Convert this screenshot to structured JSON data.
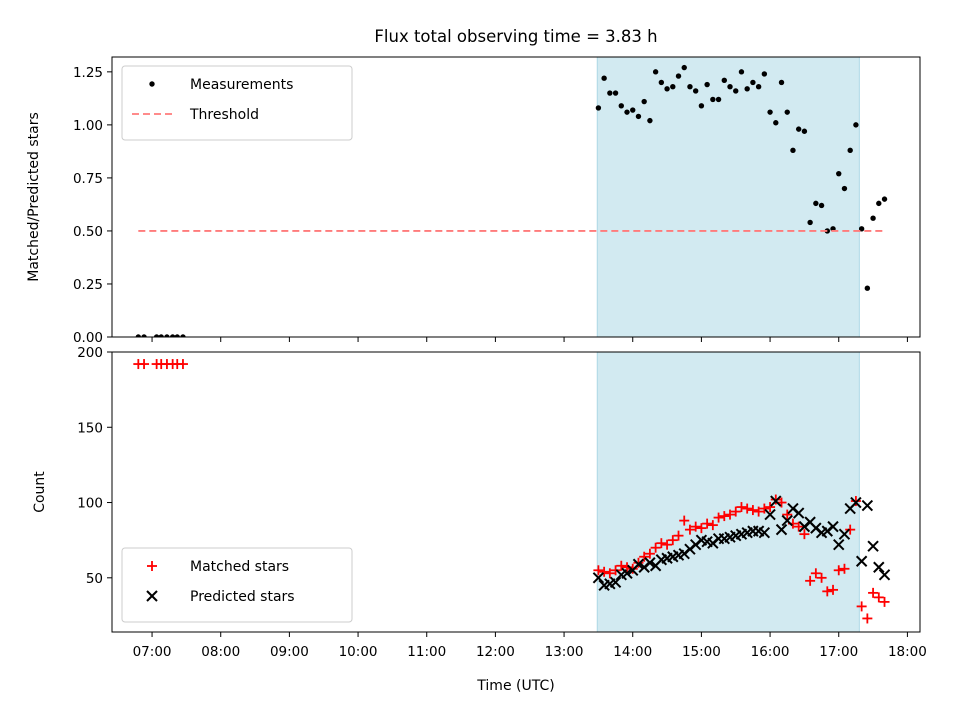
{
  "chart_data": {
    "title": "Flux total observing time = 3.83 h",
    "xlabel": "Time (UTC)",
    "x_ticks": [
      "07:00",
      "08:00",
      "09:00",
      "10:00",
      "11:00",
      "12:00",
      "13:00",
      "14:00",
      "15:00",
      "16:00",
      "17:00",
      "18:00"
    ],
    "shaded_span": [
      "13:29",
      "17:18"
    ],
    "span_color": "#add8e6",
    "panels": [
      {
        "type": "scatter",
        "ylabel": "Matched/Predicted stars",
        "ylim": [
          0,
          1.32
        ],
        "y_ticks": [
          "0.00",
          "0.25",
          "0.50",
          "0.75",
          "1.00",
          "1.25"
        ],
        "legend_position": "upper-left",
        "series": [
          {
            "name": "Measurements",
            "marker": "dot",
            "color": "#000000",
            "points": [
              [
                "06:48",
                0
              ],
              [
                "06:53",
                0
              ],
              [
                "07:04",
                0
              ],
              [
                "07:08",
                0
              ],
              [
                "07:13",
                0
              ],
              [
                "07:18",
                0
              ],
              [
                "07:22",
                0
              ],
              [
                "07:27",
                0
              ],
              [
                "13:30",
                1.08
              ],
              [
                "13:35",
                1.22
              ],
              [
                "13:40",
                1.15
              ],
              [
                "13:45",
                1.15
              ],
              [
                "13:50",
                1.09
              ],
              [
                "13:55",
                1.06
              ],
              [
                "14:00",
                1.07
              ],
              [
                "14:05",
                1.04
              ],
              [
                "14:10",
                1.11
              ],
              [
                "14:15",
                1.02
              ],
              [
                "14:20",
                1.25
              ],
              [
                "14:25",
                1.2
              ],
              [
                "14:30",
                1.17
              ],
              [
                "14:35",
                1.18
              ],
              [
                "14:40",
                1.23
              ],
              [
                "14:45",
                1.27
              ],
              [
                "14:50",
                1.18
              ],
              [
                "14:55",
                1.16
              ],
              [
                "15:00",
                1.09
              ],
              [
                "15:05",
                1.19
              ],
              [
                "15:10",
                1.12
              ],
              [
                "15:15",
                1.12
              ],
              [
                "15:20",
                1.21
              ],
              [
                "15:25",
                1.18
              ],
              [
                "15:30",
                1.16
              ],
              [
                "15:35",
                1.25
              ],
              [
                "15:40",
                1.17
              ],
              [
                "15:45",
                1.2
              ],
              [
                "15:50",
                1.18
              ],
              [
                "15:55",
                1.24
              ],
              [
                "16:00",
                1.06
              ],
              [
                "16:05",
                1.01
              ],
              [
                "16:10",
                1.2
              ],
              [
                "16:15",
                1.06
              ],
              [
                "16:20",
                0.88
              ],
              [
                "16:25",
                0.98
              ],
              [
                "16:30",
                0.97
              ],
              [
                "16:35",
                0.54
              ],
              [
                "16:40",
                0.63
              ],
              [
                "16:45",
                0.62
              ],
              [
                "16:50",
                0.5
              ],
              [
                "16:55",
                0.51
              ],
              [
                "17:00",
                0.77
              ],
              [
                "17:05",
                0.7
              ],
              [
                "17:10",
                0.88
              ],
              [
                "17:15",
                1.0
              ],
              [
                "17:20",
                0.51
              ],
              [
                "17:25",
                0.23
              ],
              [
                "17:30",
                0.56
              ],
              [
                "17:35",
                0.63
              ],
              [
                "17:40",
                0.65
              ]
            ]
          },
          {
            "name": "Threshold",
            "marker": "dashed-line",
            "color": "#ff7b7b",
            "points": [
              [
                "06:48",
                0.5
              ],
              [
                "17:40",
                0.5
              ]
            ]
          }
        ]
      },
      {
        "type": "scatter",
        "ylabel": "Count",
        "ylim": [
          14,
          200
        ],
        "y_ticks": [
          "50",
          "100",
          "150",
          "200"
        ],
        "legend_position": "lower-left",
        "series": [
          {
            "name": "Matched stars",
            "marker": "plus",
            "color": "#ff0000",
            "points": [
              [
                "06:48",
                192
              ],
              [
                "06:53",
                192
              ],
              [
                "07:04",
                192
              ],
              [
                "07:08",
                192
              ],
              [
                "07:13",
                192
              ],
              [
                "07:18",
                192
              ],
              [
                "07:22",
                192
              ],
              [
                "07:27",
                192
              ],
              [
                "13:30",
                55
              ],
              [
                "13:35",
                54
              ],
              [
                "13:40",
                53
              ],
              [
                "13:45",
                55
              ],
              [
                "13:50",
                58
              ],
              [
                "13:55",
                57
              ],
              [
                "14:00",
                56
              ],
              [
                "14:05",
                60
              ],
              [
                "14:10",
                64
              ],
              [
                "14:15",
                66
              ],
              [
                "14:20",
                70
              ],
              [
                "14:25",
                73
              ],
              [
                "14:30",
                72
              ],
              [
                "14:35",
                75
              ],
              [
                "14:40",
                78
              ],
              [
                "14:45",
                88
              ],
              [
                "14:50",
                82
              ],
              [
                "14:55",
                84
              ],
              [
                "15:00",
                83
              ],
              [
                "15:05",
                86
              ],
              [
                "15:10",
                85
              ],
              [
                "15:15",
                90
              ],
              [
                "15:20",
                91
              ],
              [
                "15:25",
                92
              ],
              [
                "15:30",
                94
              ],
              [
                "15:35",
                97
              ],
              [
                "15:40",
                96
              ],
              [
                "15:45",
                95
              ],
              [
                "15:50",
                94
              ],
              [
                "15:55",
                96
              ],
              [
                "16:00",
                97
              ],
              [
                "16:05",
                102
              ],
              [
                "16:10",
                100
              ],
              [
                "16:15",
                92
              ],
              [
                "16:20",
                86
              ],
              [
                "16:25",
                84
              ],
              [
                "16:30",
                79
              ],
              [
                "16:35",
                48
              ],
              [
                "16:40",
                53
              ],
              [
                "16:45",
                50
              ],
              [
                "16:50",
                41
              ],
              [
                "16:55",
                42
              ],
              [
                "17:00",
                55
              ],
              [
                "17:05",
                56
              ],
              [
                "17:10",
                82
              ],
              [
                "17:15",
                101
              ],
              [
                "17:20",
                31
              ],
              [
                "17:25",
                23
              ],
              [
                "17:30",
                40
              ],
              [
                "17:35",
                37
              ],
              [
                "17:40",
                34
              ]
            ]
          },
          {
            "name": "Predicted stars",
            "marker": "x",
            "color": "#000000",
            "points": [
              [
                "13:30",
                50
              ],
              [
                "13:35",
                45
              ],
              [
                "13:40",
                46
              ],
              [
                "13:45",
                47
              ],
              [
                "13:50",
                52
              ],
              [
                "13:55",
                53
              ],
              [
                "14:00",
                55
              ],
              [
                "14:05",
                59
              ],
              [
                "14:10",
                57
              ],
              [
                "14:15",
                60
              ],
              [
                "14:20",
                58
              ],
              [
                "14:25",
                62
              ],
              [
                "14:30",
                63
              ],
              [
                "14:35",
                64
              ],
              [
                "14:40",
                65
              ],
              [
                "14:45",
                66
              ],
              [
                "14:50",
                69
              ],
              [
                "14:55",
                72
              ],
              [
                "15:00",
                75
              ],
              [
                "15:05",
                74
              ],
              [
                "15:10",
                73
              ],
              [
                "15:15",
                76
              ],
              [
                "15:20",
                76
              ],
              [
                "15:25",
                77
              ],
              [
                "15:30",
                78
              ],
              [
                "15:35",
                79
              ],
              [
                "15:40",
                80
              ],
              [
                "15:45",
                81
              ],
              [
                "15:50",
                81
              ],
              [
                "15:55",
                80
              ],
              [
                "16:00",
                92
              ],
              [
                "16:05",
                101
              ],
              [
                "16:10",
                82
              ],
              [
                "16:15",
                88
              ],
              [
                "16:20",
                96
              ],
              [
                "16:25",
                93
              ],
              [
                "16:30",
                84
              ],
              [
                "16:35",
                87
              ],
              [
                "16:40",
                83
              ],
              [
                "16:45",
                80
              ],
              [
                "16:50",
                81
              ],
              [
                "16:55",
                84
              ],
              [
                "17:00",
                72
              ],
              [
                "17:05",
                79
              ],
              [
                "17:10",
                96
              ],
              [
                "17:15",
                100
              ],
              [
                "17:20",
                61
              ],
              [
                "17:25",
                98
              ],
              [
                "17:30",
                71
              ],
              [
                "17:35",
                57
              ],
              [
                "17:40",
                52
              ]
            ]
          }
        ]
      }
    ]
  }
}
